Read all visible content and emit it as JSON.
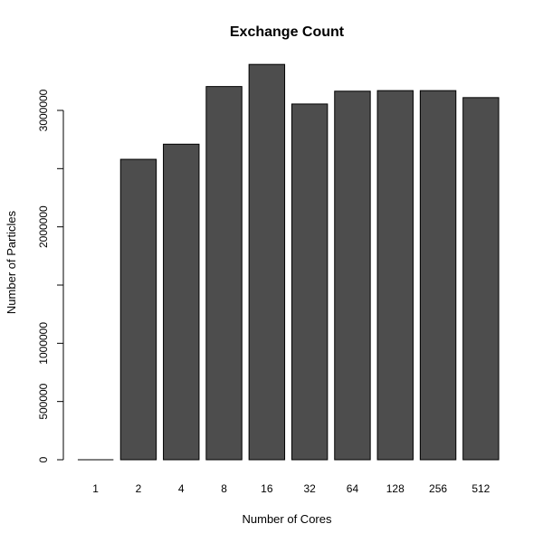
{
  "chart_data": {
    "type": "bar",
    "title": "Exchange Count",
    "xlabel": "Number of Cores",
    "ylabel": "Number of Particles",
    "categories": [
      "1",
      "2",
      "4",
      "8",
      "16",
      "32",
      "64",
      "128",
      "256",
      "512"
    ],
    "values": [
      0,
      2580000,
      2710000,
      3205000,
      3395000,
      3055000,
      3165000,
      3170000,
      3170000,
      3110000
    ],
    "ylim": [
      0,
      3400000
    ],
    "yticks": [
      0,
      500000,
      1000000,
      1500000,
      2000000,
      2500000,
      3000000
    ],
    "ytick_labels": [
      "0",
      "500000",
      "1000000",
      "",
      "2000000",
      "",
      "3000000"
    ],
    "grid": false,
    "legend": "none",
    "bar_color": "#4d4d4d",
    "bar_edge_color": "#000000"
  }
}
